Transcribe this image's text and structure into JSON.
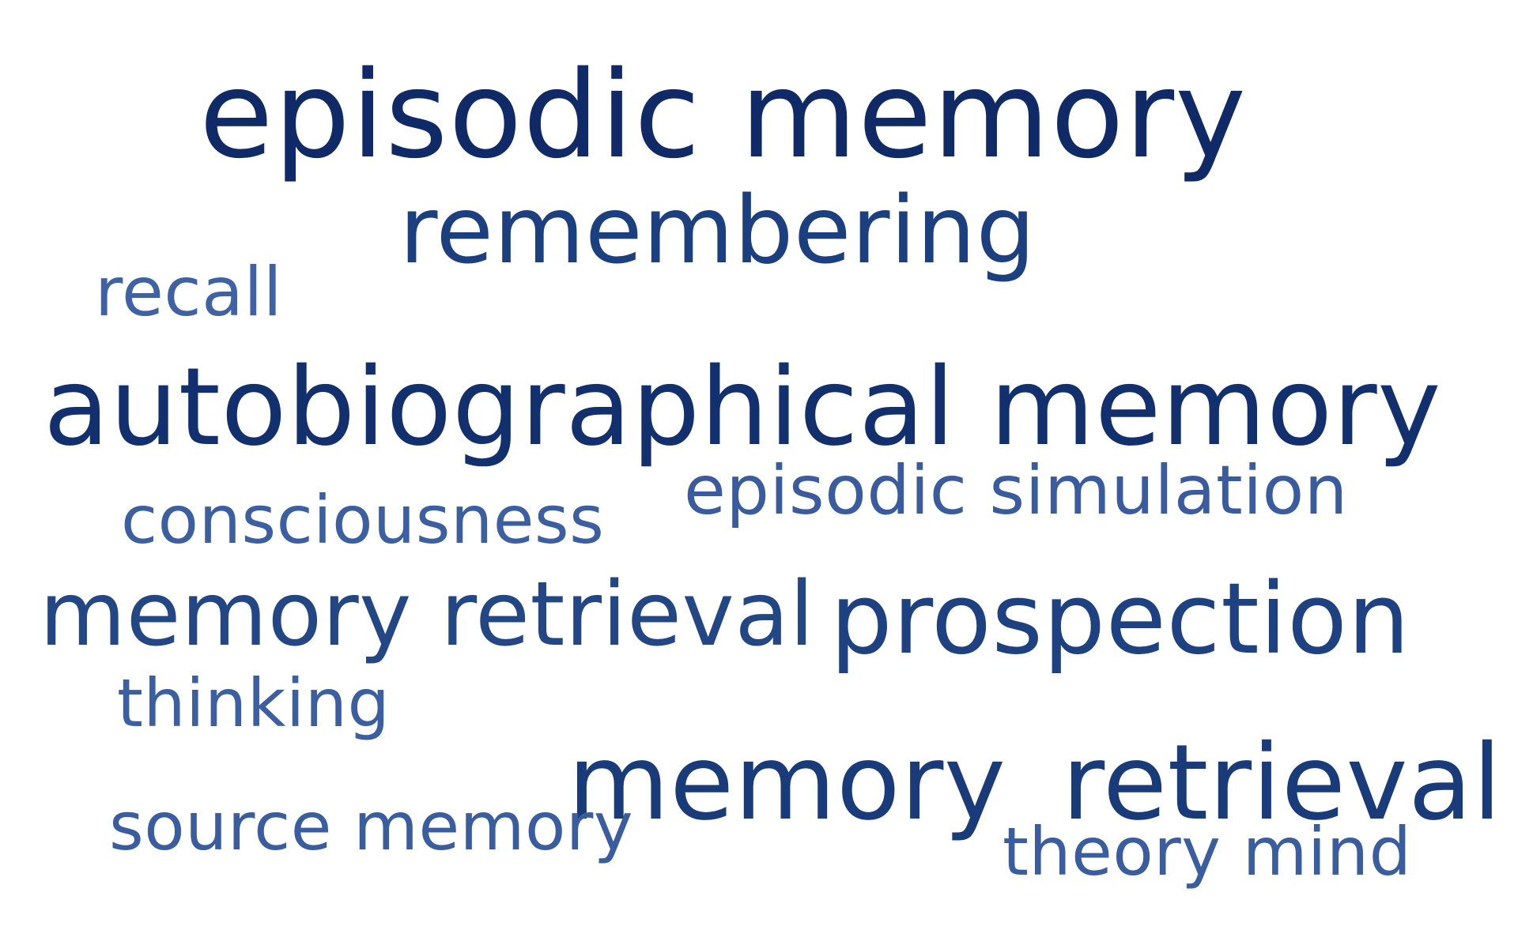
{
  "words": [
    {
      "text": "episodic memory",
      "color": "#0f2a66"
    },
    {
      "text": "remembering",
      "color": "#1c3f80"
    },
    {
      "text": "recall",
      "color": "#3e62a3"
    },
    {
      "text": "autobiographical memory",
      "color": "#13306e"
    },
    {
      "text": "episodic simulation",
      "color": "#3a5c9e"
    },
    {
      "text": "consciousness",
      "color": "#3c5fa1"
    },
    {
      "text": "memory retrieval",
      "color": "#234685"
    },
    {
      "text": "prospection",
      "color": "#1e4181"
    },
    {
      "text": "thinking",
      "color": "#3c5fa1"
    },
    {
      "text": "memory",
      "color": "#1a3b79"
    },
    {
      "text": "retrieval",
      "color": "#1a3b79"
    },
    {
      "text": "source memory",
      "color": "#3a5d9f"
    },
    {
      "text": "theory mind",
      "color": "#3a5d9f"
    }
  ]
}
